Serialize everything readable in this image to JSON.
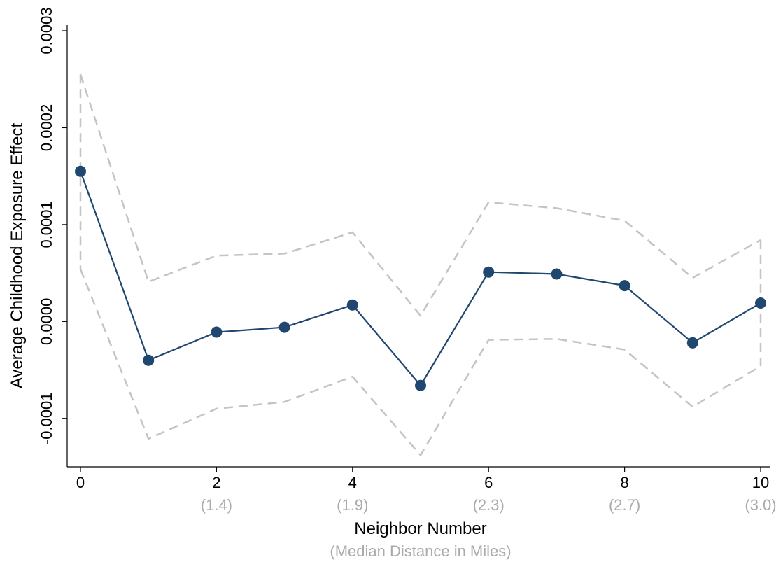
{
  "chart_data": {
    "type": "line",
    "xlabel": "Neighbor Number",
    "xlabel_sub": "(Median Distance in Miles)",
    "ylabel": "Average Childhood Exposure Effect",
    "xlim": [
      0,
      10
    ],
    "ylim": [
      -0.00015,
      0.0003
    ],
    "x_ticks": [
      {
        "value": 0,
        "label": "0",
        "sub": ""
      },
      {
        "value": 2,
        "label": "2",
        "sub": "(1.4)"
      },
      {
        "value": 4,
        "label": "4",
        "sub": "(1.9)"
      },
      {
        "value": 6,
        "label": "6",
        "sub": "(2.3)"
      },
      {
        "value": 8,
        "label": "8",
        "sub": "(2.7)"
      },
      {
        "value": 10,
        "label": "10",
        "sub": "(3.0)"
      }
    ],
    "y_ticks": [
      {
        "value": -0.0001,
        "label": "-0.0001"
      },
      {
        "value": 0,
        "label": "0.0000"
      },
      {
        "value": 0.0001,
        "label": "0.0001"
      },
      {
        "value": 0.0002,
        "label": "0.0002"
      },
      {
        "value": 0.0003,
        "label": "0.0003"
      }
    ],
    "x": [
      0,
      1,
      2,
      3,
      4,
      5,
      6,
      7,
      8,
      9,
      10
    ],
    "series": [
      {
        "values": [
          0.000155,
          -4e-05,
          -1.1e-05,
          -6e-06,
          1.7e-05,
          -6.6e-05,
          5.1e-05,
          4.9e-05,
          3.7e-05,
          -2.2e-05,
          1.9e-05
        ]
      },
      {
        "values": [
          0.000255,
          4.1e-05,
          6.8e-05,
          7e-05,
          9.2e-05,
          6e-06,
          0.000123,
          0.000117,
          0.000104,
          4.5e-05,
          8.4e-05
        ]
      },
      {
        "values": [
          5.4e-05,
          -0.000121,
          -9e-05,
          -8.3e-05,
          -5.7e-05,
          -0.000138,
          -1.9e-05,
          -1.8e-05,
          -2.9e-05,
          -8.8e-05,
          -4.6e-05
        ]
      }
    ],
    "colors": {
      "estimate": "#1f4770",
      "ci": "#c4c4c4",
      "axis": "#000000",
      "sublabel": "#aaaaaa"
    }
  }
}
